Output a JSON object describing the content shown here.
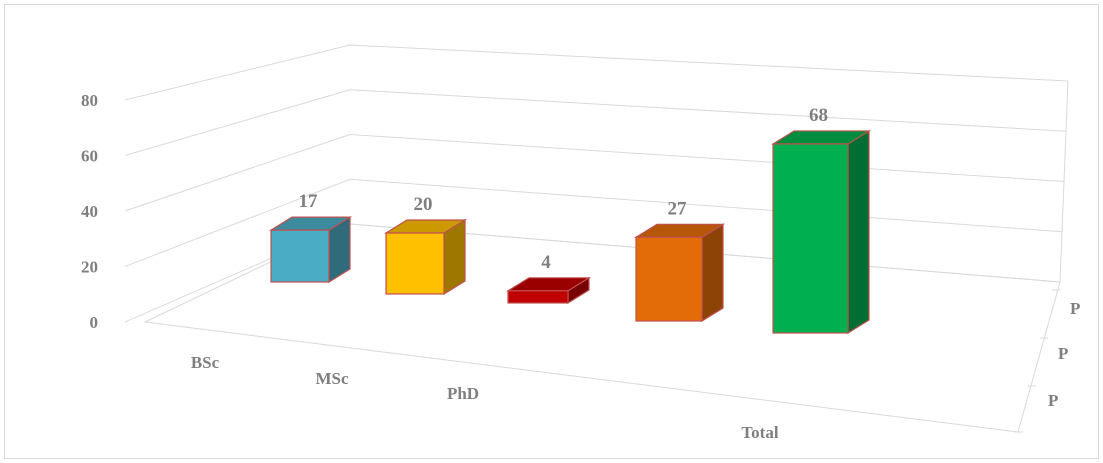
{
  "chart_data": {
    "type": "bar",
    "style": "3d-column",
    "categories": [
      "BSc",
      "MSc",
      "PhD",
      "",
      "Total"
    ],
    "series": [
      {
        "values": [
          17,
          20,
          4,
          27,
          68
        ]
      }
    ],
    "bar_colors": [
      "#4bacc6",
      "#ffc000",
      "#c00000",
      "#e36c09",
      "#00b050"
    ],
    "bar_edge_color": "#c0504d",
    "ylim": [
      0,
      80
    ],
    "yticks": [
      "0",
      "20",
      "40",
      "60",
      "80"
    ],
    "depth_labels": [
      "P",
      "P",
      "P"
    ],
    "data_labels": [
      "17",
      "20",
      "4",
      "27",
      "68"
    ],
    "grid": true,
    "title": "",
    "xlabel": "",
    "ylabel": ""
  }
}
